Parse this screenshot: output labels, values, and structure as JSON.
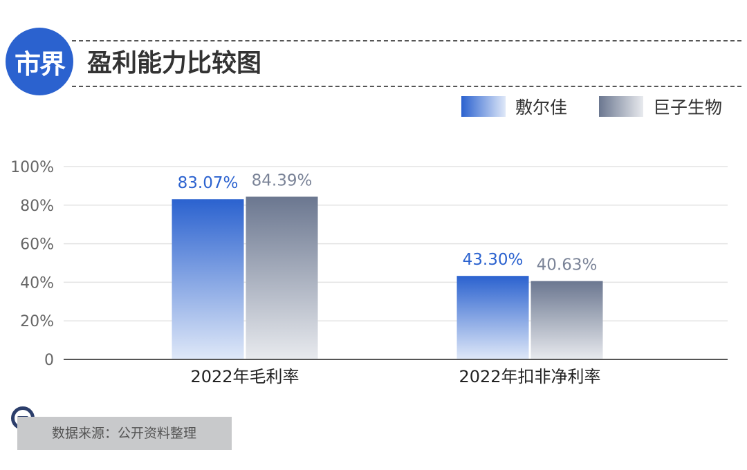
{
  "header": {
    "logo_text": "市界",
    "title": "盈利能力比较图"
  },
  "legend": [
    {
      "name": "敷尔佳",
      "color": "#2b62cf",
      "gradient_end": "#dfe8f8"
    },
    {
      "name": "巨子生物",
      "color": "#6b7790",
      "gradient_end": "#e8eaee"
    }
  ],
  "chart_data": {
    "type": "bar",
    "title": "盈利能力比较图",
    "categories": [
      "2022年毛利率",
      "2022年扣非净利率"
    ],
    "series": [
      {
        "name": "敷尔佳",
        "values": [
          83.07,
          43.3
        ],
        "labels": [
          "83.07%",
          "43.30%"
        ]
      },
      {
        "name": "巨子生物",
        "values": [
          84.39,
          40.63
        ],
        "labels": [
          "84.39%",
          "40.63%"
        ]
      }
    ],
    "ylim": [
      0,
      100
    ],
    "yticks": [
      0,
      20,
      40,
      60,
      80,
      100
    ],
    "ytick_labels": [
      "0",
      "20%",
      "40%",
      "60%",
      "80%",
      "100%"
    ],
    "grid": true,
    "legend_position": "top-right"
  },
  "footer": {
    "source": "数据来源：公开资料整理"
  }
}
